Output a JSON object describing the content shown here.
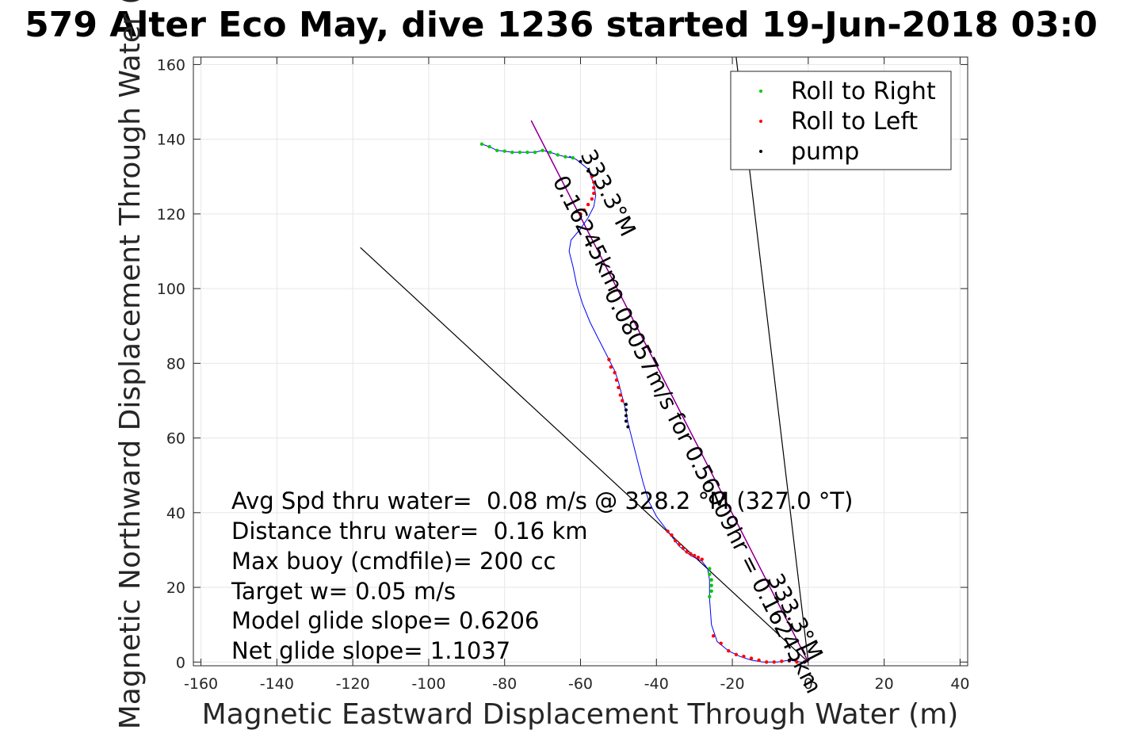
{
  "chart_data": {
    "type": "scatter",
    "title": "579 Alter Eco May, dive 1236 started 19-Jun-2018 03:0",
    "xlabel": "Magnetic Eastward Displacement Through Water (m)",
    "ylabel": "Magnetic Northward Displacement Through Water (",
    "xlim": [
      -162,
      42
    ],
    "ylim": [
      -1,
      162
    ],
    "xticks": [
      -160,
      -140,
      -120,
      -100,
      -80,
      -60,
      -40,
      -20,
      0,
      20,
      40
    ],
    "yticks": [
      0,
      20,
      40,
      60,
      80,
      100,
      120,
      140,
      160
    ],
    "grid": true,
    "legend_position": "top-right",
    "legend": [
      {
        "label": "Roll to Right",
        "color": "#00cc00"
      },
      {
        "label": "Roll to Left",
        "color": "#ff0000"
      },
      {
        "label": "pump",
        "color": "#000000"
      }
    ],
    "track": [
      [
        0,
        0
      ],
      [
        -2,
        0
      ],
      [
        -5,
        0.5
      ],
      [
        -8,
        0
      ],
      [
        -12,
        0
      ],
      [
        -15,
        0.5
      ],
      [
        -18,
        1.5
      ],
      [
        -21,
        3
      ],
      [
        -24,
        5.5
      ],
      [
        -25.5,
        10
      ],
      [
        -26,
        17
      ],
      [
        -26,
        22
      ],
      [
        -26.5,
        25
      ],
      [
        -28,
        27
      ],
      [
        -31,
        28.5
      ],
      [
        -34,
        31
      ],
      [
        -37,
        35
      ],
      [
        -40,
        39
      ],
      [
        -42,
        43
      ],
      [
        -43.5,
        48
      ],
      [
        -45,
        54
      ],
      [
        -46.5,
        60
      ],
      [
        -47.5,
        64
      ],
      [
        -48,
        67
      ],
      [
        -49,
        71
      ],
      [
        -50,
        75
      ],
      [
        -51,
        78
      ],
      [
        -53,
        82
      ],
      [
        -55,
        86
      ],
      [
        -57.5,
        91
      ],
      [
        -59.5,
        96
      ],
      [
        -61,
        101
      ],
      [
        -62,
        106
      ],
      [
        -63,
        110
      ],
      [
        -62.5,
        113
      ],
      [
        -60,
        116
      ],
      [
        -58,
        119
      ],
      [
        -56.5,
        122
      ],
      [
        -56,
        125
      ],
      [
        -56.5,
        128
      ],
      [
        -58,
        132
      ],
      [
        -61,
        134.5
      ],
      [
        -63,
        135.5
      ]
    ],
    "roll_right": [
      [
        -86,
        138.7
      ],
      [
        -84,
        138
      ],
      [
        -82,
        137
      ],
      [
        -80,
        136.8
      ],
      [
        -78,
        136.5
      ],
      [
        -76,
        136.5
      ],
      [
        -74,
        136.5
      ],
      [
        -72,
        136.5
      ],
      [
        -70,
        137
      ],
      [
        -68,
        136.5
      ],
      [
        -66,
        135.8
      ],
      [
        -64,
        135.3
      ],
      [
        -62,
        135
      ],
      [
        -26,
        25
      ],
      [
        -26,
        23.5
      ],
      [
        -25.5,
        22
      ],
      [
        -25.5,
        20.5
      ],
      [
        -25.5,
        19
      ],
      [
        -26,
        17.5
      ]
    ],
    "roll_left": [
      [
        -57,
        130
      ],
      [
        -56.5,
        128.5
      ],
      [
        -56.5,
        127
      ],
      [
        -56.5,
        125.5
      ],
      [
        -57,
        124
      ],
      [
        -58,
        122.5
      ],
      [
        -59,
        121
      ],
      [
        -60,
        120
      ],
      [
        -52.5,
        81
      ],
      [
        -52,
        79
      ],
      [
        -51,
        77.5
      ],
      [
        -50.5,
        75.5
      ],
      [
        -50,
        73.5
      ],
      [
        -49.5,
        71.5
      ],
      [
        -49,
        70
      ],
      [
        -37,
        35
      ],
      [
        -36,
        34
      ],
      [
        -35,
        32.5
      ],
      [
        -34,
        31.5
      ],
      [
        -33,
        30.5
      ],
      [
        -32,
        29.5
      ],
      [
        -31,
        29
      ],
      [
        -30,
        28.5
      ],
      [
        -29,
        28
      ],
      [
        -28,
        27.5
      ],
      [
        -25,
        7
      ],
      [
        -23,
        5
      ],
      [
        -21,
        3
      ],
      [
        -19,
        2
      ],
      [
        -17,
        1.5
      ],
      [
        -15,
        1
      ],
      [
        -13,
        0.5
      ],
      [
        -11,
        0
      ],
      [
        -9,
        0
      ],
      [
        -7,
        0.2
      ],
      [
        -5,
        0.3
      ],
      [
        -3,
        0
      ],
      [
        -1,
        0
      ]
    ],
    "pump": [
      [
        -60,
        134
      ],
      [
        -58,
        131.5
      ],
      [
        -48,
        69
      ],
      [
        -48,
        67.5
      ],
      [
        -48,
        66
      ],
      [
        -48,
        64.5
      ],
      [
        -47.5,
        63
      ],
      [
        -1,
        0
      ],
      [
        -5,
        0.5
      ]
    ],
    "heading_line": {
      "from": [
        0,
        0
      ],
      "to": [
        -73,
        145
      ],
      "color": "#ff00ff"
    },
    "black_line_left": {
      "from": [
        0,
        0
      ],
      "to": [
        -118,
        111
      ]
    },
    "black_line_right": {
      "from": [
        0,
        0
      ],
      "to": [
        -19,
        162
      ]
    },
    "annotations": [
      {
        "text": "333.3°M",
        "angle": 63
      },
      {
        "text": "0.16245km",
        "angle": 63
      },
      {
        "text": "0.08057m/s for 0.56009hr = 0.16245km",
        "angle": 63
      },
      {
        "text": "333.3°M",
        "angle": 63
      }
    ],
    "info_lines": [
      "Avg Spd thru water=  0.08 m/s @ 328.2 °M (327.0 °T)",
      "Distance thru water=  0.16 km",
      "Max buoy (cmdfile)= 200 cc",
      "Target w= 0.05 m/s",
      "Model glide slope= 0.6206",
      "Net glide slope= 1.1037"
    ]
  }
}
